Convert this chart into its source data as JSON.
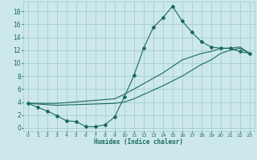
{
  "xlabel": "Humidex (Indice chaleur)",
  "bg_color": "#cce8ec",
  "grid_color": "#9dc8cc",
  "line_color": "#1a6b5a",
  "xlim": [
    -0.5,
    23.5
  ],
  "ylim": [
    -0.5,
    19.5
  ],
  "xticks": [
    0,
    1,
    2,
    3,
    4,
    5,
    6,
    7,
    8,
    9,
    10,
    11,
    12,
    13,
    14,
    15,
    16,
    17,
    18,
    19,
    20,
    21,
    22,
    23
  ],
  "yticks": [
    0,
    2,
    4,
    6,
    8,
    10,
    12,
    14,
    16,
    18
  ],
  "curve1_x": [
    0,
    1,
    2,
    3,
    4,
    5,
    6,
    7,
    8,
    9,
    10,
    11,
    12,
    13,
    14,
    15,
    16,
    17,
    18,
    19,
    20,
    21,
    22,
    23
  ],
  "curve1_y": [
    3.8,
    3.2,
    2.6,
    1.9,
    1.1,
    1.0,
    0.2,
    0.2,
    0.5,
    1.7,
    4.8,
    8.1,
    12.3,
    15.5,
    17.0,
    18.8,
    16.5,
    14.8,
    13.3,
    12.5,
    12.3,
    12.3,
    11.8,
    11.5
  ],
  "curve2_x": [
    0,
    2,
    3,
    9,
    10,
    11,
    14,
    16,
    18,
    19,
    20,
    21,
    22,
    23
  ],
  "curve2_y": [
    3.8,
    3.8,
    3.8,
    4.5,
    5.2,
    6.0,
    8.5,
    10.5,
    11.5,
    11.8,
    12.3,
    12.3,
    12.5,
    11.5
  ],
  "curve3_x": [
    0,
    2,
    3,
    9,
    10,
    11,
    14,
    16,
    18,
    19,
    20,
    21,
    22,
    23
  ],
  "curve3_y": [
    3.8,
    3.6,
    3.5,
    3.8,
    4.0,
    4.5,
    6.5,
    8.0,
    9.8,
    10.5,
    11.5,
    12.0,
    12.3,
    11.5
  ]
}
